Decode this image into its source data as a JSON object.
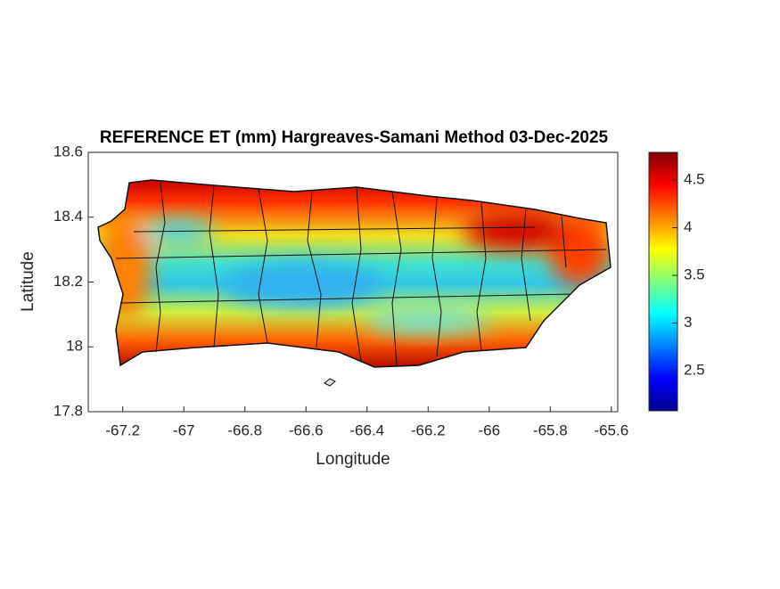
{
  "chart_data": {
    "type": "heatmap",
    "title": "REFERENCE ET (mm) Hargreaves-Samani Method  03-Dec-2025",
    "xlabel": "Longitude",
    "ylabel": "Latitude",
    "xlim": [
      -67.313,
      -65.579
    ],
    "xticks": [
      -67.2,
      -67,
      -66.8,
      -66.6,
      -66.4,
      -66.2,
      -66,
      -65.8,
      -65.6
    ],
    "ylim": [
      17.8,
      18.6
    ],
    "yticks": [
      17.8,
      18,
      18.2,
      18.4,
      18.6
    ],
    "colorbar": {
      "lim": [
        2.08,
        4.79
      ],
      "ticks": [
        2.5,
        3,
        3.5,
        4,
        4.5
      ]
    }
  }
}
